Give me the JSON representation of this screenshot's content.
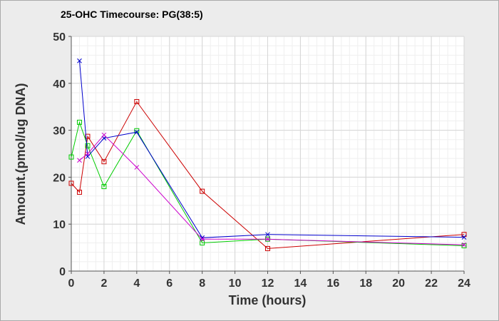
{
  "chart_data": {
    "type": "line",
    "title": "25-OHC Timecourse: PG(38:5)",
    "xlabel": "Time (hours)",
    "ylabel": "Amount.(pmol/ug DNA)",
    "xlim": [
      0,
      24
    ],
    "ylim": [
      0,
      50
    ],
    "xticks": [
      0,
      2,
      4,
      6,
      8,
      10,
      12,
      14,
      16,
      18,
      20,
      22,
      24
    ],
    "yticks": [
      0,
      10,
      20,
      30,
      40,
      50
    ],
    "grid": true,
    "legend": "none",
    "series": [
      {
        "color": "#cc0000",
        "marker": "square",
        "x": [
          0,
          0.5,
          1,
          2,
          4,
          8,
          12,
          24
        ],
        "y": [
          18.7,
          16.8,
          28.7,
          23.3,
          36.1,
          17.0,
          4.8,
          7.8
        ]
      },
      {
        "color": "#00cc00",
        "marker": "square",
        "x": [
          0,
          0.5,
          1,
          2,
          4,
          8,
          12,
          24
        ],
        "y": [
          24.3,
          31.7,
          26.7,
          18.0,
          29.9,
          6.0,
          6.8,
          5.4
        ]
      },
      {
        "color": "#0000cc",
        "marker": "x",
        "x": [
          0.5,
          1,
          2,
          4,
          8,
          12,
          24
        ],
        "y": [
          44.8,
          24.4,
          28.3,
          29.6,
          7.1,
          7.8,
          7.2
        ]
      },
      {
        "color": "#cc00cc",
        "marker": "x",
        "x": [
          0.5,
          1,
          2,
          4,
          8,
          12,
          24
        ],
        "y": [
          23.6,
          25.0,
          29.0,
          22.1,
          6.8,
          6.8,
          5.6
        ]
      }
    ]
  }
}
